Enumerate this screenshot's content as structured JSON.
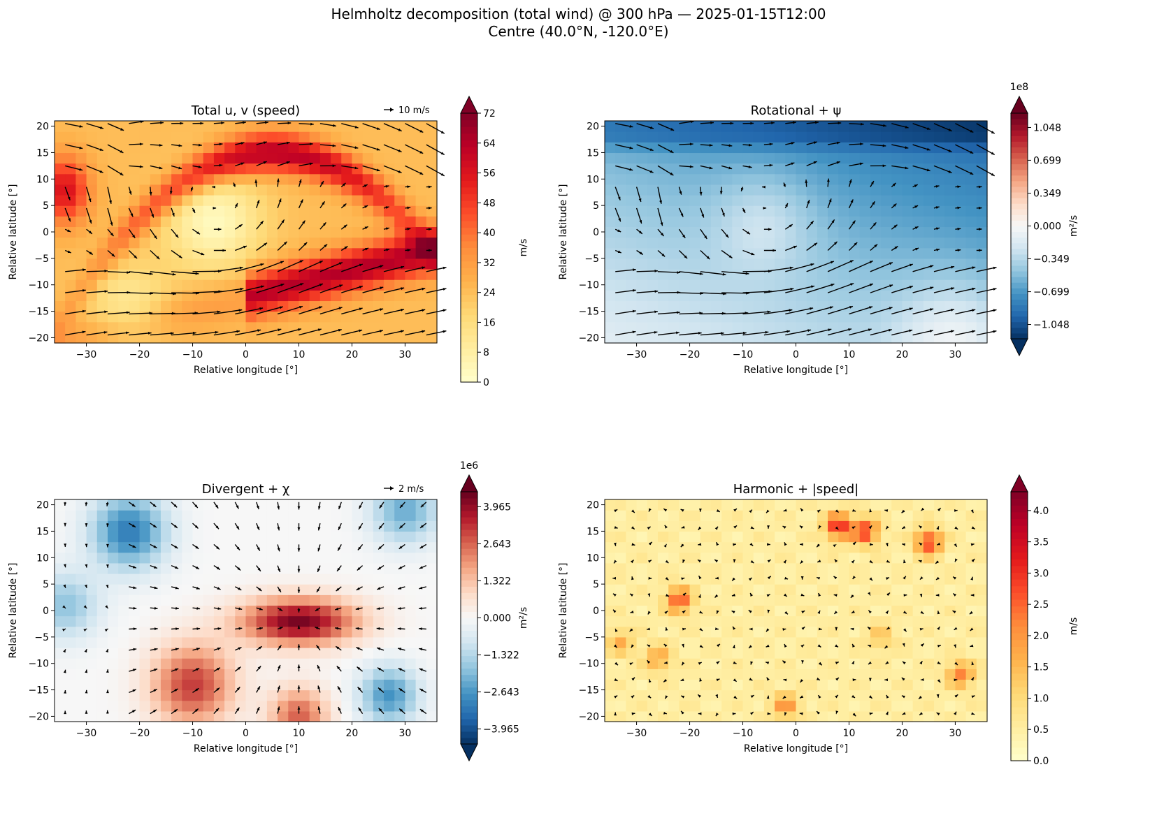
{
  "figure": {
    "title_line1": "Helmholtz decomposition (total wind) @ 300 hPa — 2025-01-15T12:00",
    "title_line2": "Centre (40.0°N, -120.0°E)"
  },
  "chart_data": [
    {
      "type": "heatmap",
      "title": "Total u, v  (speed)",
      "xlabel": "Relative longitude [°]",
      "ylabel": "Relative latitude [°]",
      "xlim": [
        -36,
        36
      ],
      "ylim": [
        -21,
        21
      ],
      "xticks": [
        -30,
        -20,
        -10,
        0,
        10,
        20,
        30
      ],
      "yticks": [
        -20,
        -15,
        -10,
        -5,
        0,
        5,
        10,
        15,
        20
      ],
      "colormap": "YlOrRd",
      "quiver_key": "10 m/s",
      "colorbar": {
        "label": "m/s",
        "range": [
          0,
          72
        ],
        "ticks": [
          "0",
          "8",
          "16",
          "24",
          "32",
          "40",
          "48",
          "56",
          "64",
          "72"
        ],
        "extend": "max",
        "offset": ""
      }
    },
    {
      "type": "heatmap",
      "title": "Rotational + ψ",
      "xlabel": "Relative longitude [°]",
      "ylabel": "Relative latitude [°]",
      "xlim": [
        -36,
        36
      ],
      "ylim": [
        -21,
        21
      ],
      "xticks": [
        -30,
        -20,
        -10,
        0,
        10,
        20,
        30
      ],
      "yticks": [
        -20,
        -15,
        -10,
        -5,
        0,
        5,
        10,
        15,
        20
      ],
      "colormap": "RdBu_r",
      "quiver_key": "",
      "colorbar": {
        "label": "m²/s",
        "range": [
          -1.2,
          1.2
        ],
        "ticks": [
          "−1.048",
          "−0.699",
          "−0.349",
          "0.000",
          "0.349",
          "0.699",
          "1.048"
        ],
        "extend": "both",
        "offset": "1e8"
      }
    },
    {
      "type": "heatmap",
      "title": "Divergent + χ",
      "xlabel": "Relative longitude [°]",
      "ylabel": "Relative latitude [°]",
      "xlim": [
        -36,
        36
      ],
      "ylim": [
        -21,
        21
      ],
      "xticks": [
        -30,
        -20,
        -10,
        0,
        10,
        20,
        30
      ],
      "yticks": [
        -20,
        -15,
        -10,
        -5,
        0,
        5,
        10,
        15,
        20
      ],
      "colormap": "RdBu_r",
      "quiver_key": "2 m/s",
      "colorbar": {
        "label": "m²/s",
        "range": [
          -4.5,
          4.5
        ],
        "ticks": [
          "−3.965",
          "−2.643",
          "−1.322",
          "0.000",
          "1.322",
          "2.643",
          "3.965"
        ],
        "extend": "both",
        "offset": "1e6"
      }
    },
    {
      "type": "heatmap",
      "title": "Harmonic + |speed|",
      "xlabel": "Relative longitude [°]",
      "ylabel": "Relative latitude [°]",
      "xlim": [
        -36,
        36
      ],
      "ylim": [
        -21,
        21
      ],
      "xticks": [
        -30,
        -20,
        -10,
        0,
        10,
        20,
        30
      ],
      "yticks": [
        -20,
        -15,
        -10,
        -5,
        0,
        5,
        10,
        15,
        20
      ],
      "colormap": "YlOrRd",
      "quiver_key": "",
      "colorbar": {
        "label": "m/s",
        "range": [
          0,
          4.3
        ],
        "ticks": [
          "0.0",
          "0.5",
          "1.0",
          "1.5",
          "2.0",
          "2.5",
          "3.0",
          "3.5",
          "4.0"
        ],
        "extend": "max",
        "offset": ""
      }
    }
  ]
}
